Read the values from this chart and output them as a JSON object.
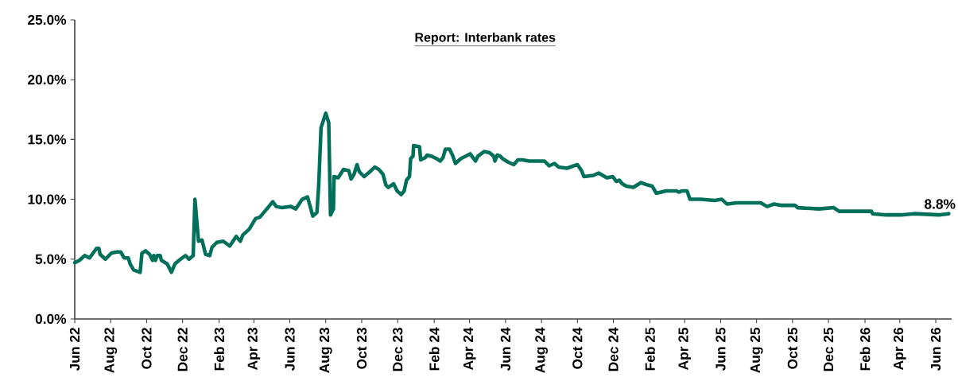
{
  "chart_data": {
    "type": "line",
    "title": "Report: Interbank rates",
    "x": [
      "2022-06-01",
      "2022-06-09",
      "2022-06-18",
      "2022-06-26",
      "2022-07-08",
      "2022-07-12",
      "2022-07-14",
      "2022-07-23",
      "2022-08-02",
      "2022-08-11",
      "2022-08-18",
      "2022-08-24",
      "2022-08-31",
      "2022-09-03",
      "2022-09-09",
      "2022-09-20",
      "2022-09-23",
      "2022-09-29",
      "2022-10-06",
      "2022-10-11",
      "2022-10-13",
      "2022-10-16",
      "2022-10-19",
      "2022-10-24",
      "2022-10-26",
      "2022-11-05",
      "2022-11-12",
      "2022-11-18",
      "2022-11-25",
      "2022-12-06",
      "2022-12-12",
      "2022-12-19",
      "2022-12-22",
      "2022-12-28",
      "2023-01-03",
      "2023-01-09",
      "2023-01-16",
      "2023-01-20",
      "2023-01-28",
      "2023-02-08",
      "2023-02-19",
      "2023-03-02",
      "2023-03-09",
      "2023-03-13",
      "2023-03-24",
      "2023-04-04",
      "2023-04-11",
      "2023-04-23",
      "2023-05-03",
      "2023-05-09",
      "2023-05-19",
      "2023-06-03",
      "2023-06-11",
      "2023-06-22",
      "2023-07-01",
      "2023-07-10",
      "2023-07-17",
      "2023-07-20",
      "2023-07-24",
      "2023-08-01",
      "2023-08-06",
      "2023-08-09",
      "2023-08-14",
      "2023-08-15",
      "2023-08-22",
      "2023-08-31",
      "2023-09-09",
      "2023-09-13",
      "2023-09-18",
      "2023-09-23",
      "2023-09-27",
      "2023-10-05",
      "2023-10-17",
      "2023-10-23",
      "2023-10-30",
      "2023-11-06",
      "2023-11-11",
      "2023-11-15",
      "2023-11-24",
      "2023-11-30",
      "2023-12-07",
      "2023-12-12",
      "2023-12-16",
      "2023-12-21",
      "2023-12-23",
      "2023-12-27",
      "2023-12-28",
      "2024-01-07",
      "2024-01-09",
      "2024-01-17",
      "2024-01-20",
      "2024-01-28",
      "2024-02-05",
      "2024-02-11",
      "2024-02-16",
      "2024-02-20",
      "2024-02-27",
      "2024-03-03",
      "2024-03-08",
      "2024-03-17",
      "2024-04-02",
      "2024-04-11",
      "2024-04-15",
      "2024-04-26",
      "2024-05-05",
      "2024-05-12",
      "2024-05-14",
      "2024-05-18",
      "2024-05-23",
      "2024-05-27",
      "2024-06-06",
      "2024-06-15",
      "2024-06-22",
      "2024-06-30",
      "2024-07-11",
      "2024-08-06",
      "2024-08-14",
      "2024-08-23",
      "2024-08-30",
      "2024-09-13",
      "2024-10-01",
      "2024-10-08",
      "2024-10-12",
      "2024-10-28",
      "2024-11-06",
      "2024-11-20",
      "2024-11-30",
      "2024-12-06",
      "2024-12-11",
      "2024-12-16",
      "2024-12-23",
      "2025-01-04",
      "2025-01-17",
      "2025-01-28",
      "2025-02-05",
      "2025-02-12",
      "2025-02-28",
      "2025-03-18",
      "2025-03-22",
      "2025-03-27",
      "2025-04-05",
      "2025-04-10",
      "2025-04-28",
      "2025-05-22",
      "2025-06-03",
      "2025-06-12",
      "2025-06-28",
      "2025-08-08",
      "2025-08-19",
      "2025-08-30",
      "2025-09-11",
      "2025-10-05",
      "2025-10-10",
      "2025-11-15",
      "2025-12-10",
      "2025-12-19",
      "2026-02-12",
      "2026-02-14",
      "2026-03-09",
      "2026-04-03",
      "2026-04-25",
      "2026-06-06",
      "2026-06-23"
    ],
    "values": [
      4.7,
      4.9,
      5.3,
      5.1,
      5.9,
      5.9,
      5.4,
      5.0,
      5.5,
      5.6,
      5.6,
      5.1,
      5.1,
      4.6,
      4.1,
      3.9,
      5.5,
      5.7,
      5.4,
      4.9,
      5.3,
      4.9,
      5.3,
      5.3,
      4.9,
      4.6,
      3.9,
      4.6,
      4.9,
      5.3,
      5.0,
      5.3,
      10.0,
      6.5,
      6.6,
      5.4,
      5.3,
      6.0,
      6.4,
      6.5,
      6.1,
      6.9,
      6.5,
      7.0,
      7.5,
      8.4,
      8.5,
      9.2,
      9.8,
      9.4,
      9.3,
      9.4,
      9.2,
      10.0,
      10.2,
      8.6,
      8.9,
      11.2,
      16.0,
      17.2,
      16.4,
      8.7,
      9.2,
      11.9,
      11.8,
      12.5,
      12.4,
      11.7,
      12.1,
      12.9,
      12.3,
      11.9,
      12.4,
      12.7,
      12.5,
      12.1,
      11.2,
      11.0,
      11.3,
      10.7,
      10.4,
      10.7,
      11.6,
      11.9,
      13.4,
      13.6,
      14.5,
      14.4,
      13.3,
      13.5,
      13.7,
      13.6,
      13.4,
      13.2,
      13.5,
      14.2,
      14.2,
      13.7,
      13.0,
      13.4,
      13.8,
      13.2,
      13.6,
      14.0,
      13.9,
      13.6,
      13.2,
      13.7,
      13.6,
      13.4,
      13.1,
      12.9,
      13.3,
      13.3,
      13.2,
      13.2,
      12.8,
      13.0,
      12.7,
      12.6,
      12.9,
      12.4,
      11.9,
      12.0,
      12.2,
      11.8,
      11.9,
      11.5,
      11.6,
      11.3,
      11.1,
      11.0,
      11.4,
      11.2,
      11.1,
      10.5,
      10.7,
      10.7,
      10.6,
      10.7,
      10.7,
      10.0,
      10.0,
      9.9,
      10.0,
      9.6,
      9.7,
      9.7,
      9.4,
      9.6,
      9.5,
      9.5,
      9.3,
      9.2,
      9.3,
      9.0,
      9.0,
      8.8,
      8.7,
      8.7,
      8.8,
      8.7,
      8.8
    ],
    "color": "#00705a",
    "marker": "none",
    "line_style": "solid",
    "xlim": [
      "2022-06-01",
      "2026-06-28"
    ],
    "xticks": [
      {
        "value": "2022-06-01",
        "label": "Jun 22"
      },
      {
        "value": "2022-08-01",
        "label": "Aug 22"
      },
      {
        "value": "2022-10-01",
        "label": "Oct 22"
      },
      {
        "value": "2022-12-01",
        "label": "Dec 22"
      },
      {
        "value": "2023-02-01",
        "label": "Feb 23"
      },
      {
        "value": "2023-04-01",
        "label": "Apr 23"
      },
      {
        "value": "2023-06-01",
        "label": "Jun 23"
      },
      {
        "value": "2023-08-01",
        "label": "Aug 23"
      },
      {
        "value": "2023-10-01",
        "label": "Oct 23"
      },
      {
        "value": "2023-12-01",
        "label": "Dec 23"
      },
      {
        "value": "2024-02-01",
        "label": "Feb 24"
      },
      {
        "value": "2024-04-01",
        "label": "Apr 24"
      },
      {
        "value": "2024-06-01",
        "label": "Jun 24"
      },
      {
        "value": "2024-08-01",
        "label": "Aug 24"
      },
      {
        "value": "2024-10-01",
        "label": "Oct 24"
      },
      {
        "value": "2024-12-01",
        "label": "Dec 24"
      },
      {
        "value": "2025-02-01",
        "label": "Feb 25"
      },
      {
        "value": "2025-04-01",
        "label": "Apr 25"
      },
      {
        "value": "2025-06-01",
        "label": "Jun 25"
      },
      {
        "value": "2025-08-01",
        "label": "Aug 25"
      },
      {
        "value": "2025-10-01",
        "label": "Oct 25"
      },
      {
        "value": "2025-12-01",
        "label": "Dec 25"
      },
      {
        "value": "2026-02-01",
        "label": "Feb 26"
      },
      {
        "value": "2026-04-01",
        "label": "Apr 26"
      },
      {
        "value": "2026-06-01",
        "label": "Jun 26"
      }
    ],
    "ylim": [
      0,
      25
    ],
    "yticks": [
      {
        "value": 0,
        "label": "0.0%"
      },
      {
        "value": 5,
        "label": "5.0%"
      },
      {
        "value": 10,
        "label": "10.0%"
      },
      {
        "value": 15,
        "label": "15.0%"
      },
      {
        "value": 20,
        "label": "20.0%"
      },
      {
        "value": 25,
        "label": "25.0%"
      }
    ],
    "annotations": [
      {
        "text": "8.8%",
        "x": "2026-06-23",
        "y": 8.8
      }
    ]
  }
}
